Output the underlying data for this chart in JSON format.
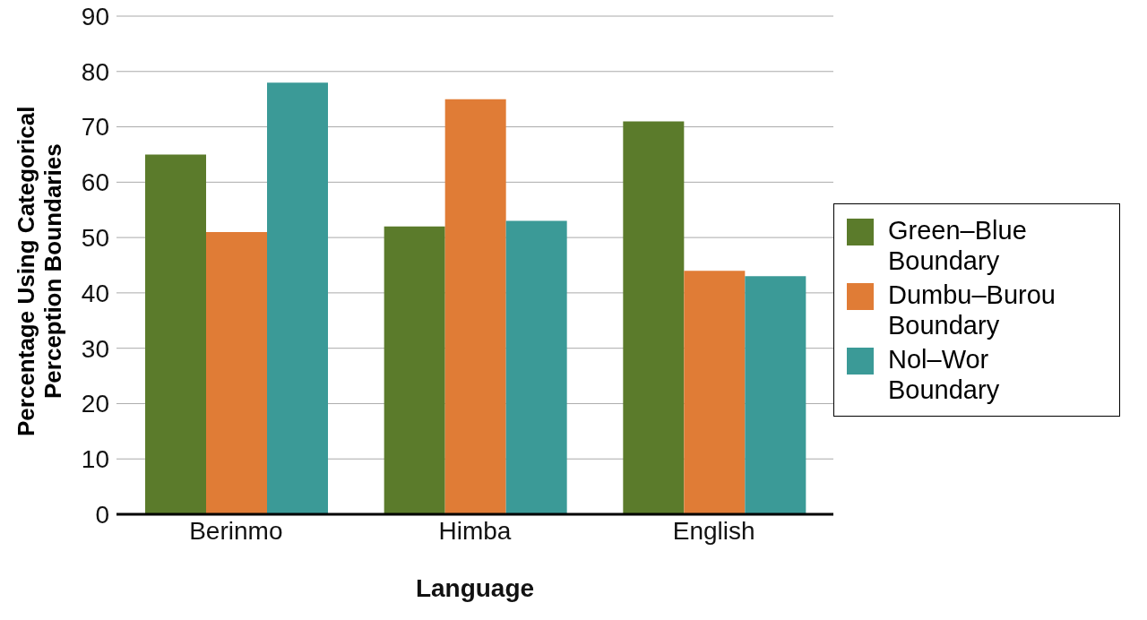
{
  "chart_data": {
    "type": "bar",
    "xlabel": "Language",
    "ylabel": "Percentage Using Categorical Perception Boundaries",
    "categories": [
      "Berinmo",
      "Himba",
      "English"
    ],
    "series": [
      {
        "name": "Green–Blue Boundary",
        "color": "#5b7b2b",
        "values": [
          65,
          52,
          71
        ]
      },
      {
        "name": "Dumbu–Burou Boundary",
        "color": "#e07c36",
        "values": [
          51,
          75,
          44
        ]
      },
      {
        "name": "Nol–Wor Boundary",
        "color": "#3b9a97",
        "values": [
          78,
          53,
          43
        ]
      }
    ],
    "ylim": [
      0,
      90
    ],
    "yticks": [
      0,
      10,
      20,
      30,
      40,
      50,
      60,
      70,
      80,
      90
    ],
    "grid": "y",
    "legend": "right"
  }
}
